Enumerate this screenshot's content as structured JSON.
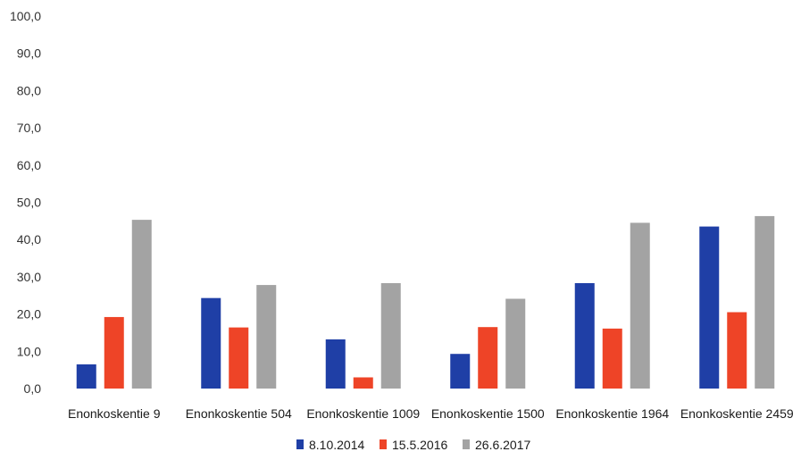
{
  "chart_data": {
    "type": "bar",
    "title": "",
    "xlabel": "",
    "ylabel": "",
    "ylim": [
      0,
      100
    ],
    "yticks": [
      "0,0",
      "10,0",
      "20,0",
      "30,0",
      "40,0",
      "50,0",
      "60,0",
      "70,0",
      "80,0",
      "90,0",
      "100,0"
    ],
    "categories": [
      "Enonkoskentie 9",
      "Enonkoskentie 504",
      "Enonkoskentie 1009",
      "Enonkoskentie 1500",
      "Enonkoskentie 1964",
      "Enonkoskentie 2459"
    ],
    "series": [
      {
        "name": "8.10.2014",
        "color": "#1f3fa6",
        "values": [
          6.5,
          24.3,
          13.2,
          9.3,
          28.3,
          43.5
        ]
      },
      {
        "name": "15.5.2016",
        "color": "#ee4427",
        "values": [
          19.2,
          16.4,
          3.0,
          16.5,
          16.1,
          20.5
        ]
      },
      {
        "name": "26.6.2017",
        "color": "#a3a3a3",
        "values": [
          45.3,
          27.8,
          28.3,
          24.1,
          44.5,
          46.3
        ]
      }
    ],
    "grid": false,
    "legend": "bottom-center"
  }
}
